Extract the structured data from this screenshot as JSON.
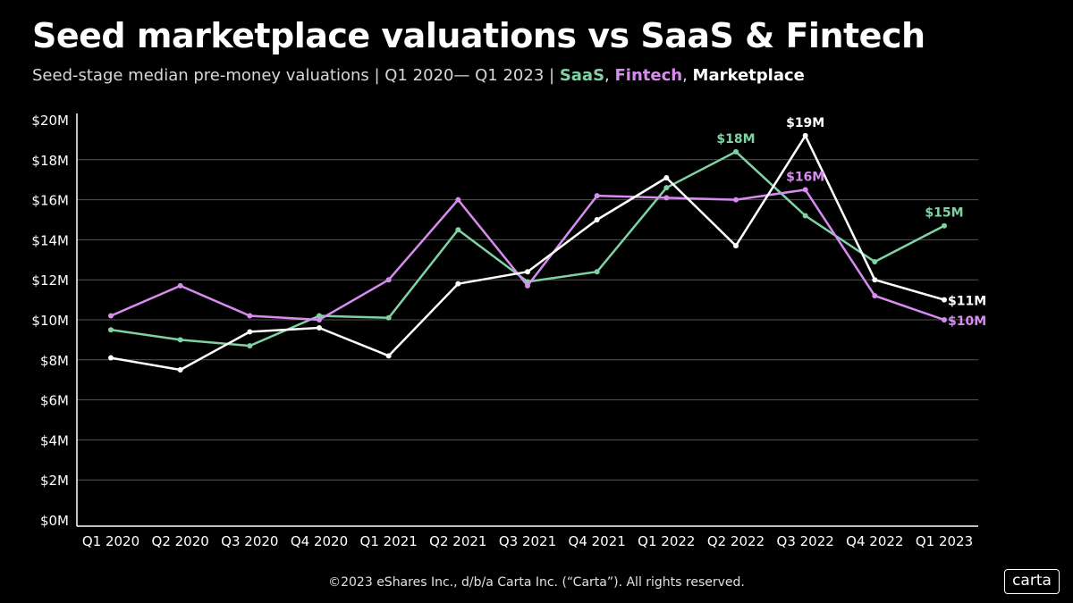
{
  "header": {
    "title": "Seed marketplace valuations vs SaaS & Fintech",
    "subtitle_prefix": "Seed-stage median pre-money valuations | Q1 2020— Q1 2023 | ",
    "sep1": ", ",
    "sep2": ", "
  },
  "footer": {
    "copyright": "©2023 eShares Inc., d/b/a Carta Inc. (“Carta”). All rights reserved.",
    "logo": "carta"
  },
  "colors": {
    "background": "#000000",
    "saas": "#7fd3a3",
    "fintech": "#d88cf0",
    "marketplace": "#ffffff",
    "grid": "#555555"
  },
  "chart_data": {
    "type": "line",
    "categories": [
      "Q1 2020",
      "Q2 2020",
      "Q3 2020",
      "Q4 2020",
      "Q1 2021",
      "Q2 2021",
      "Q3 2021",
      "Q4 2021",
      "Q1 2022",
      "Q2 2022",
      "Q3 2022",
      "Q4 2022",
      "Q1 2023"
    ],
    "yticks": [
      "$0M",
      "$2M",
      "$4M",
      "$6M",
      "$8M",
      "$10M",
      "$12M",
      "$14M",
      "$16M",
      "$18M",
      "$20M"
    ],
    "ylim": [
      0,
      20
    ],
    "grid": true,
    "legend": "subtitle",
    "series": [
      {
        "name": "SaaS",
        "key": "saas",
        "values": [
          9.5,
          9.0,
          8.7,
          10.2,
          10.1,
          14.5,
          11.9,
          12.4,
          16.6,
          18.4,
          15.2,
          12.9,
          14.7
        ]
      },
      {
        "name": "Fintech",
        "key": "fintech",
        "values": [
          10.2,
          11.7,
          10.2,
          10.0,
          12.0,
          16.0,
          11.7,
          16.2,
          16.1,
          16.0,
          16.5,
          11.2,
          10.0
        ]
      },
      {
        "name": "Marketplace",
        "key": "marketplace",
        "values": [
          8.1,
          7.5,
          9.4,
          9.6,
          8.2,
          11.8,
          12.4,
          15.0,
          17.1,
          13.7,
          19.2,
          12.0,
          11.0
        ]
      }
    ],
    "annotations": [
      {
        "series": "saas",
        "index": 9,
        "text": "$18M",
        "pos": "above"
      },
      {
        "series": "saas",
        "index": 12,
        "text": "$15M",
        "pos": "above"
      },
      {
        "series": "fintech",
        "index": 10,
        "text": "$16M",
        "pos": "above"
      },
      {
        "series": "fintech",
        "index": 12,
        "text": "$10M",
        "pos": "right"
      },
      {
        "series": "marketplace",
        "index": 10,
        "text": "$19M",
        "pos": "above"
      },
      {
        "series": "marketplace",
        "index": 12,
        "text": "$11M",
        "pos": "right"
      }
    ]
  }
}
